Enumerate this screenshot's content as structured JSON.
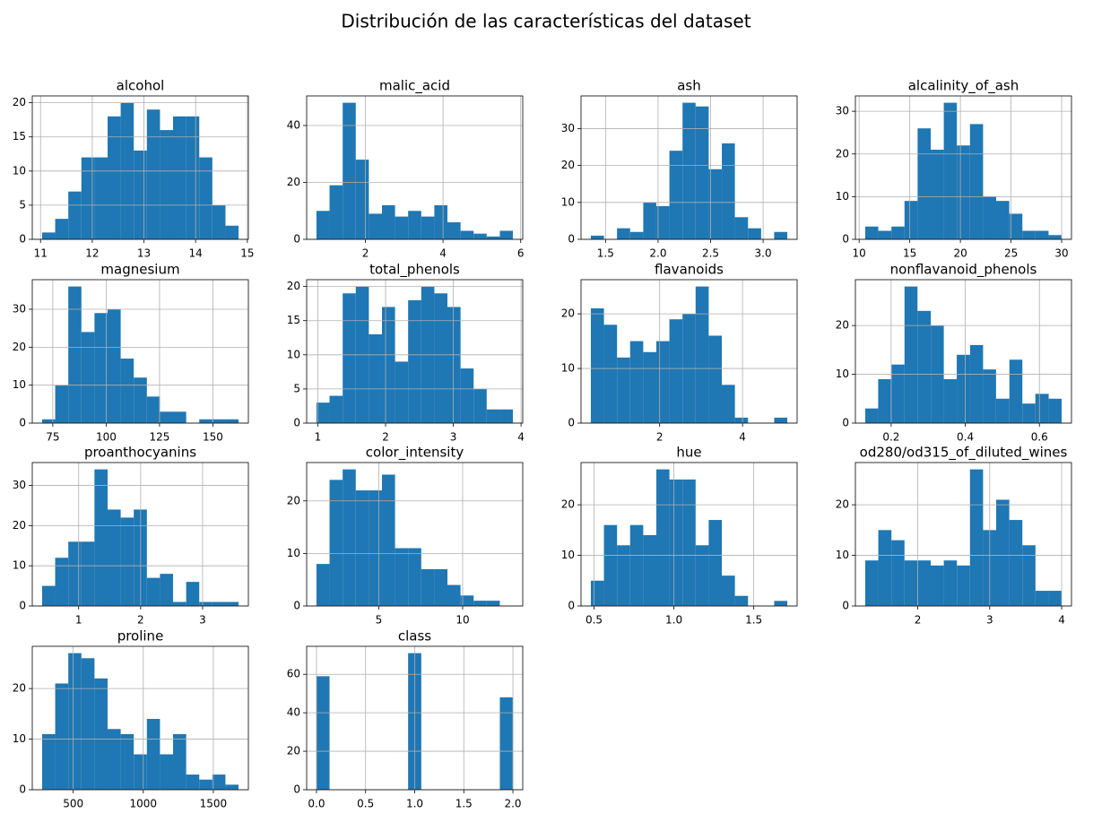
{
  "title": "Distribución de las características del dataset",
  "chart_data": [
    {
      "type": "histogram",
      "title": "alcohol",
      "color": "#1f77b4",
      "grid": true,
      "bins": [
        11.03,
        11.283,
        11.537,
        11.79,
        12.043,
        12.297,
        12.55,
        12.803,
        13.057,
        13.31,
        13.563,
        13.817,
        14.07,
        14.323,
        14.577,
        14.83
      ],
      "values": [
        1,
        3,
        7,
        12,
        12,
        18,
        20,
        13,
        19,
        16,
        18,
        18,
        12,
        5,
        2
      ],
      "xlim": [
        10.84,
        15.02
      ],
      "xticks": [
        11,
        12,
        13,
        14,
        15
      ],
      "ylim": [
        0,
        21
      ],
      "yticks": [
        0,
        5,
        10,
        15,
        20
      ]
    },
    {
      "type": "histogram",
      "title": "malic_acid",
      "color": "#1f77b4",
      "grid": true,
      "bins": [
        0.74,
        1.077,
        1.415,
        1.752,
        2.089,
        2.427,
        2.764,
        3.101,
        3.439,
        3.776,
        4.113,
        4.451,
        4.788,
        5.125,
        5.463,
        5.8
      ],
      "values": [
        10,
        19,
        48,
        28,
        9,
        12,
        8,
        10,
        8,
        12,
        6,
        3,
        2,
        1,
        3
      ],
      "xlim": [
        0.487,
        6.053
      ],
      "xticks": [
        2,
        4,
        6
      ],
      "ylim": [
        0,
        50.4
      ],
      "yticks": [
        0,
        20,
        40
      ]
    },
    {
      "type": "histogram",
      "title": "ash",
      "color": "#1f77b4",
      "grid": true,
      "bins": [
        1.36,
        1.485,
        1.609,
        1.734,
        1.859,
        1.983,
        2.108,
        2.233,
        2.357,
        2.482,
        2.607,
        2.731,
        2.856,
        2.981,
        3.105,
        3.23
      ],
      "values": [
        1,
        0,
        3,
        2,
        10,
        9,
        24,
        37,
        36,
        19,
        26,
        6,
        3,
        0,
        2
      ],
      "xlim": [
        1.2665,
        3.3235
      ],
      "xticks": [
        1.5,
        {
          "value": 2,
          "label": "2.0"
        },
        2.5,
        {
          "value": 3,
          "label": "3.0"
        }
      ],
      "ylim": [
        0,
        38.85
      ],
      "yticks": [
        0,
        10,
        20,
        30
      ]
    },
    {
      "type": "histogram",
      "title": "alcalinity_of_ash",
      "color": "#1f77b4",
      "grid": true,
      "bins": [
        10.6,
        11.893,
        13.187,
        14.48,
        15.773,
        17.067,
        18.36,
        19.653,
        20.947,
        22.24,
        23.533,
        24.827,
        26.12,
        27.413,
        28.707,
        30
      ],
      "values": [
        3,
        2,
        3,
        9,
        26,
        21,
        32,
        22,
        27,
        10,
        9,
        6,
        2,
        2,
        1
      ],
      "xlim": [
        9.63,
        30.97
      ],
      "xticks": [
        10,
        15,
        20,
        25,
        30
      ],
      "ylim": [
        0,
        33.6
      ],
      "yticks": [
        0,
        10,
        20,
        30
      ]
    },
    {
      "type": "histogram",
      "title": "magnesium",
      "color": "#1f77b4",
      "grid": true,
      "bins": [
        70,
        76.133,
        82.267,
        88.4,
        94.533,
        100.667,
        106.8,
        112.933,
        119.067,
        125.2,
        131.333,
        137.467,
        143.6,
        149.733,
        155.867,
        162
      ],
      "values": [
        1,
        10,
        36,
        24,
        29,
        30,
        17,
        12,
        7,
        3,
        3,
        0,
        1,
        1,
        1
      ],
      "xlim": [
        65.4,
        166.6
      ],
      "xticks": [
        75,
        100,
        125,
        150
      ],
      "ylim": [
        0,
        37.8
      ],
      "yticks": [
        0,
        10,
        20,
        30
      ]
    },
    {
      "type": "histogram",
      "title": "total_phenols",
      "color": "#1f77b4",
      "grid": true,
      "bins": [
        0.98,
        1.173,
        1.367,
        1.56,
        1.753,
        1.947,
        2.14,
        2.333,
        2.527,
        2.72,
        2.913,
        3.107,
        3.3,
        3.493,
        3.687,
        3.88
      ],
      "values": [
        3,
        4,
        19,
        20,
        13,
        17,
        9,
        18,
        20,
        19,
        17,
        8,
        5,
        2,
        2
      ],
      "xlim": [
        0.835,
        4.025
      ],
      "xticks": [
        1,
        2,
        3,
        4
      ],
      "ylim": [
        0,
        21
      ],
      "yticks": [
        0,
        5,
        10,
        15,
        20
      ]
    },
    {
      "type": "histogram",
      "title": "flavanoids",
      "color": "#1f77b4",
      "grid": true,
      "bins": [
        0.34,
        0.656,
        0.972,
        1.288,
        1.604,
        1.92,
        2.236,
        2.552,
        2.868,
        3.184,
        3.5,
        3.816,
        4.132,
        4.448,
        4.764,
        5.08
      ],
      "values": [
        21,
        18,
        12,
        15,
        13,
        15,
        19,
        20,
        25,
        16,
        7,
        1,
        0,
        0,
        1
      ],
      "xlim": [
        0.103,
        5.317
      ],
      "xticks": [
        2,
        4
      ],
      "ylim": [
        0,
        26.25
      ],
      "yticks": [
        0,
        10,
        20
      ]
    },
    {
      "type": "histogram",
      "title": "nonflavanoid_phenols",
      "color": "#1f77b4",
      "grid": true,
      "bins": [
        0.13,
        0.165,
        0.201,
        0.236,
        0.271,
        0.307,
        0.342,
        0.377,
        0.413,
        0.448,
        0.483,
        0.519,
        0.554,
        0.589,
        0.625,
        0.66
      ],
      "values": [
        3,
        9,
        12,
        28,
        23,
        20,
        9,
        14,
        16,
        11,
        5,
        13,
        4,
        6,
        5
      ],
      "xlim": [
        0.1035,
        0.6865
      ],
      "xticks": [
        0.2,
        0.4,
        0.6
      ],
      "ylim": [
        0,
        29.4
      ],
      "yticks": [
        0,
        10,
        20
      ]
    },
    {
      "type": "histogram",
      "title": "proanthocyanins",
      "color": "#1f77b4",
      "grid": true,
      "bins": [
        0.41,
        0.621,
        0.833,
        1.044,
        1.255,
        1.467,
        1.678,
        1.889,
        2.101,
        2.312,
        2.523,
        2.735,
        2.946,
        3.157,
        3.369,
        3.58
      ],
      "values": [
        5,
        12,
        16,
        16,
        34,
        24,
        22,
        24,
        7,
        8,
        1,
        6,
        1,
        1,
        1
      ],
      "xlim": [
        0.2515,
        3.7385
      ],
      "xticks": [
        1,
        2,
        3
      ],
      "ylim": [
        0,
        35.7
      ],
      "yticks": [
        0,
        10,
        20,
        30
      ]
    },
    {
      "type": "histogram",
      "title": "color_intensity",
      "color": "#1f77b4",
      "grid": true,
      "bins": [
        1.28,
        2.061,
        2.843,
        3.624,
        4.405,
        5.187,
        5.968,
        6.749,
        7.531,
        8.312,
        9.093,
        9.875,
        10.656,
        11.437,
        12.219,
        13
      ],
      "values": [
        8,
        24,
        26,
        22,
        22,
        25,
        11,
        11,
        7,
        7,
        4,
        2,
        1,
        1,
        0
      ],
      "xlim": [
        0.694,
        13.586
      ],
      "xticks": [
        5,
        10
      ],
      "ylim": [
        0,
        27.3
      ],
      "yticks": [
        0,
        10,
        20
      ]
    },
    {
      "type": "histogram",
      "title": "hue",
      "color": "#1f77b4",
      "grid": true,
      "bins": [
        0.48,
        0.562,
        0.644,
        0.726,
        0.808,
        0.89,
        0.972,
        1.054,
        1.136,
        1.218,
        1.3,
        1.382,
        1.464,
        1.546,
        1.628,
        1.71
      ],
      "values": [
        5,
        16,
        12,
        16,
        14,
        27,
        25,
        25,
        12,
        17,
        6,
        2,
        0,
        0,
        1
      ],
      "xlim": [
        0.4185,
        1.7715
      ],
      "xticks": [
        0.5,
        {
          "value": 1,
          "label": "1.0"
        },
        1.5
      ],
      "ylim": [
        0,
        28.35
      ],
      "yticks": [
        0,
        10,
        20
      ]
    },
    {
      "type": "histogram",
      "title": "od280/od315_of_diluted_wines",
      "color": "#1f77b4",
      "grid": true,
      "bins": [
        1.27,
        1.452,
        1.634,
        1.816,
        1.998,
        2.18,
        2.362,
        2.544,
        2.726,
        2.908,
        3.09,
        3.272,
        3.454,
        3.636,
        3.818,
        4
      ],
      "values": [
        9,
        15,
        13,
        9,
        9,
        8,
        9,
        8,
        27,
        15,
        21,
        17,
        12,
        3,
        3
      ],
      "xlim": [
        1.1335,
        4.1365
      ],
      "xticks": [
        2,
        3,
        4
      ],
      "ylim": [
        0,
        28.35
      ],
      "yticks": [
        0,
        10,
        20
      ]
    },
    {
      "type": "histogram",
      "title": "proline",
      "color": "#1f77b4",
      "grid": true,
      "bins": [
        278,
        371.467,
        464.933,
        558.4,
        651.867,
        745.333,
        838.8,
        932.267,
        1025.733,
        1119.2,
        1212.667,
        1306.133,
        1399.6,
        1493.067,
        1586.533,
        1680
      ],
      "values": [
        11,
        21,
        27,
        26,
        22,
        12,
        11,
        7,
        14,
        7,
        11,
        3,
        2,
        3,
        1
      ],
      "xlim": [
        207.9,
        1750.1
      ],
      "xticks": [
        500,
        1000,
        1500
      ],
      "ylim": [
        0,
        28.35
      ],
      "yticks": [
        0,
        10,
        20
      ]
    },
    {
      "type": "histogram",
      "title": "class",
      "color": "#1f77b4",
      "grid": true,
      "bins": [
        0,
        0.133,
        0.267,
        0.4,
        0.533,
        0.667,
        0.8,
        0.933,
        1.067,
        1.2,
        1.333,
        1.467,
        1.6,
        1.733,
        1.867,
        2
      ],
      "values": [
        59,
        0,
        0,
        0,
        0,
        0,
        0,
        71,
        0,
        0,
        0,
        0,
        0,
        0,
        48
      ],
      "xlim": [
        -0.1,
        2.1
      ],
      "xticks": [
        {
          "value": 0,
          "label": "0.0"
        },
        0.5,
        {
          "value": 1,
          "label": "1.0"
        },
        1.5,
        {
          "value": 2,
          "label": "2.0"
        }
      ],
      "ylim": [
        0,
        74.55
      ],
      "yticks": [
        0,
        20,
        40,
        60
      ]
    }
  ]
}
